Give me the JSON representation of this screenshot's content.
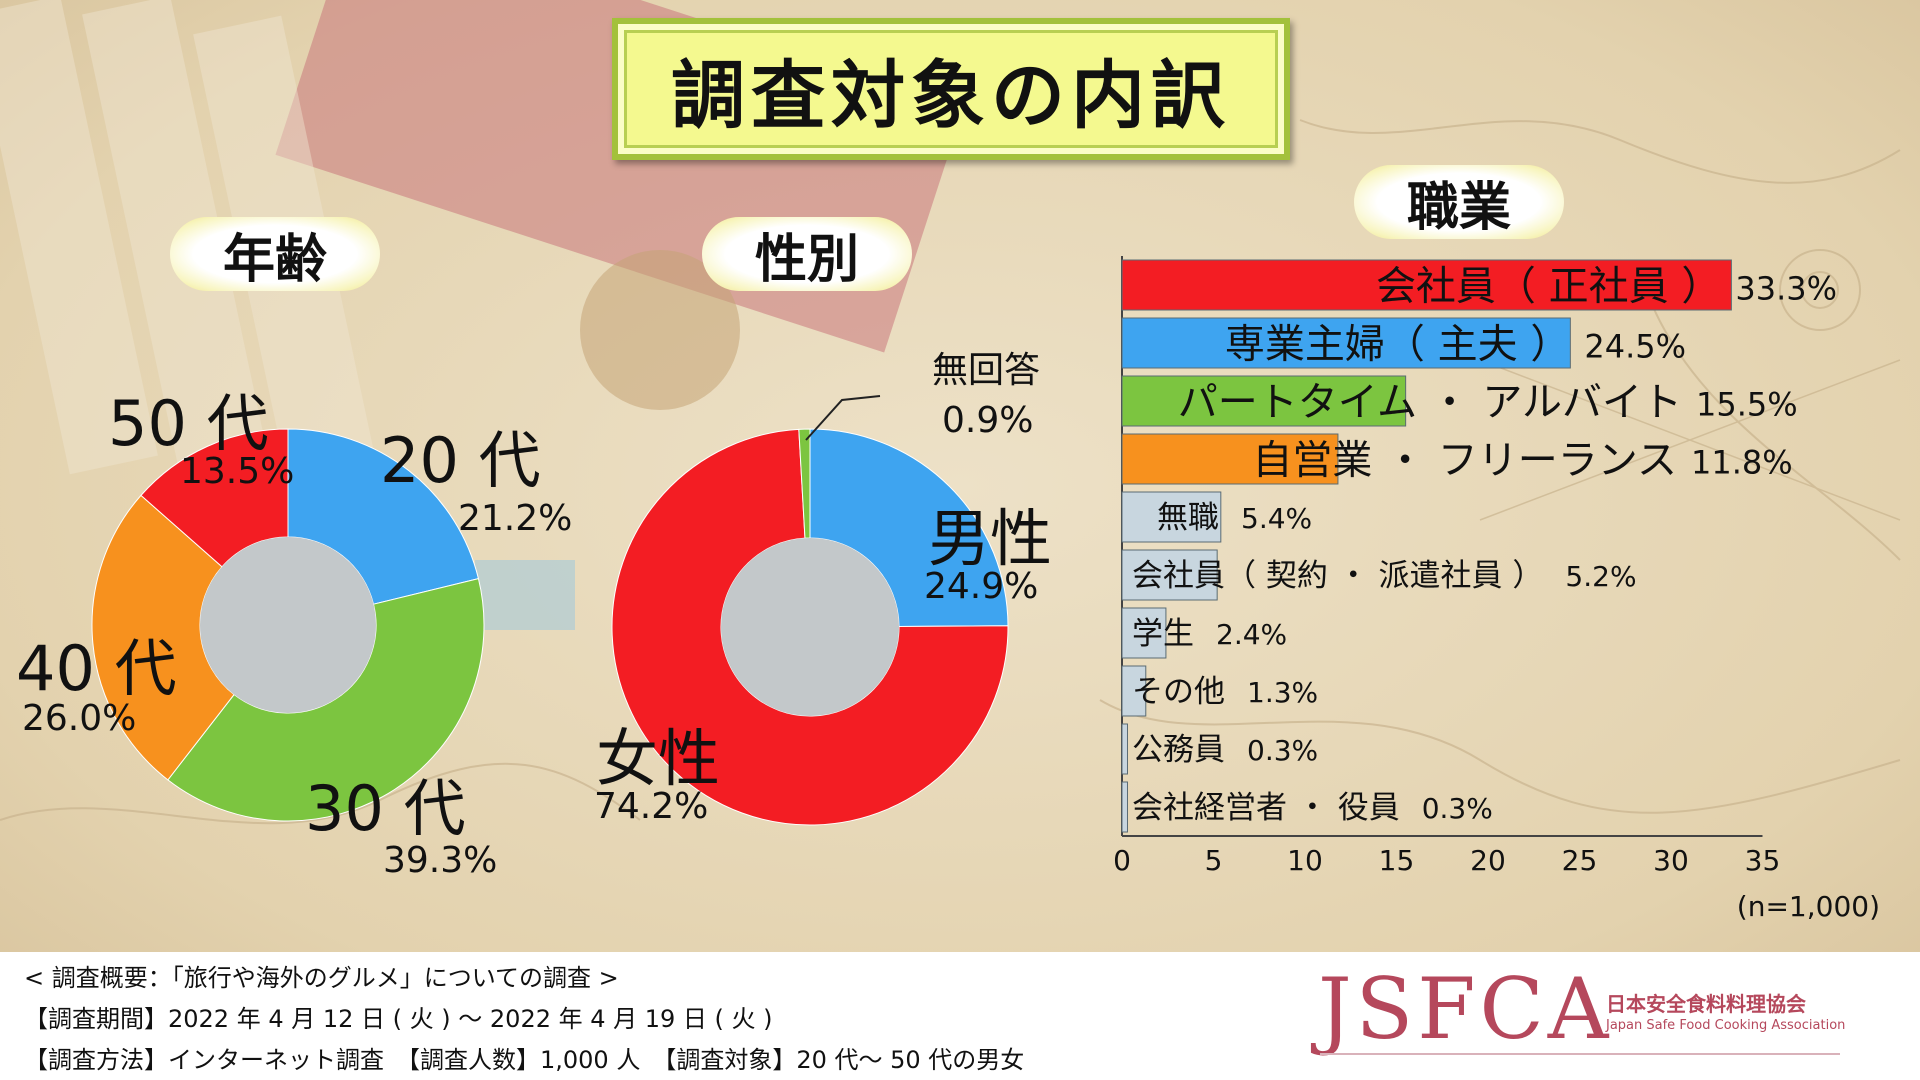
{
  "title": "調査対象の内訳",
  "colors": {
    "red": "#f31d23",
    "blue": "#3ea4f0",
    "green": "#7cc540",
    "orange": "#f7911e",
    "gray_center": "#c3c8ca",
    "bar_gray": "#c8d6df"
  },
  "footer": {
    "line1": "< 調査概要：「旅行や海外のグルメ」についての調査 >",
    "line2": "【調査期間】2022 年 4 月 12 日 ( 火 ) ～ 2022 年 4 月 19 日 ( 火 )",
    "line3": "【調査方法】インターネット調査　【調査人数】1,000 人　【調査対象】20 代～ 50 代の男女"
  },
  "logo": {
    "text": "JSFCA",
    "jp": "日本安全食料料理協会",
    "en": "Japan Safe Food Cooking Association"
  },
  "chart_data": [
    {
      "type": "pie",
      "title": "年齢",
      "labels": [
        "20 代",
        "30 代",
        "40 代",
        "50 代"
      ],
      "values": [
        21.2,
        39.3,
        26.0,
        13.5
      ],
      "value_labels": [
        "21.2%",
        "39.3%",
        "26.0%",
        "13.5%"
      ],
      "colors": [
        "#3ea4f0",
        "#7cc540",
        "#f7911e",
        "#f31d23"
      ]
    },
    {
      "type": "pie",
      "title": "性別",
      "labels": [
        "男性",
        "女性",
        "無回答"
      ],
      "values": [
        24.9,
        74.2,
        0.9
      ],
      "value_labels": [
        "24.9%",
        "74.2%",
        "0.9%"
      ],
      "colors": [
        "#3ea4f0",
        "#f31d23",
        "#7cc540"
      ]
    },
    {
      "type": "bar",
      "orientation": "horizontal",
      "title": "職業",
      "categories": [
        "会社員（正社員）",
        "専業主婦（主夫）",
        "パートタイム・アルバイト",
        "自営業・フリーランス",
        "無職",
        "会社員（契約・派遣社員）",
        "学生",
        "その他",
        "公務員",
        "会社経営者・役員"
      ],
      "category_labels": [
        "会社員（ 正社員 ）",
        "専業主婦（ 主夫 ）",
        "パートタイム ・ アルバイト",
        "自営業 ・ フリーランス",
        "無職",
        "会社員（ 契約 ・ 派遣社員 ）",
        "学生",
        "その他",
        "公務員",
        "会社経営者 ・ 役員"
      ],
      "values": [
        33.3,
        24.5,
        15.5,
        11.8,
        5.4,
        5.2,
        2.4,
        1.3,
        0.3,
        0.3
      ],
      "value_labels": [
        "33.3%",
        "24.5%",
        "15.5%",
        "11.8%",
        "5.4%",
        "5.2%",
        "2.4%",
        "1.3%",
        "0.3%",
        "0.3%"
      ],
      "colors": [
        "#f31d23",
        "#3ea4f0",
        "#7cc540",
        "#f7911e",
        "#c8d6df",
        "#c8d6df",
        "#c8d6df",
        "#c8d6df",
        "#c8d6df",
        "#c8d6df"
      ],
      "xlim": [
        0,
        35
      ],
      "xticks": [
        0,
        5,
        10,
        15,
        20,
        25,
        30,
        35
      ],
      "note": "(n=1,000)"
    }
  ]
}
